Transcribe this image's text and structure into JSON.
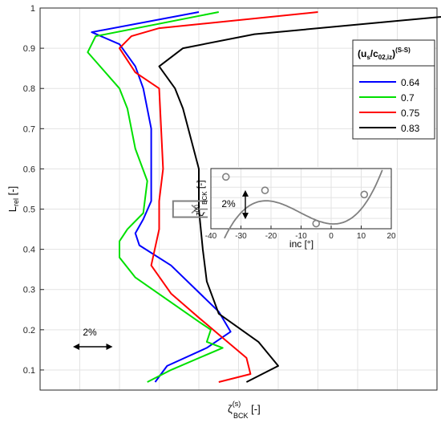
{
  "chart_data": [
    {
      "type": "line",
      "title": "",
      "xlabel_main": "ζ",
      "xlabel_sub": "BCK",
      "xlabel_sup": "(s)",
      "xlabel_unit": " [-]",
      "ylabel_main": "L",
      "ylabel_sub": "rel",
      "ylabel_unit": " [-]",
      "ylim": [
        0.05,
        1.0
      ],
      "yticks": [
        "0.1",
        "0.2",
        "0.3",
        "0.4",
        "0.5",
        "0.6",
        "0.7",
        "0.8",
        "0.9",
        "1"
      ],
      "yticks_values": [
        0.1,
        0.2,
        0.3,
        0.4,
        0.5,
        0.6,
        0.7,
        0.8,
        0.9,
        1.0
      ],
      "xlim": [
        0,
        100
      ],
      "xgrid": [
        0,
        10,
        20,
        30,
        40,
        50,
        60,
        70,
        80,
        90,
        100
      ],
      "grid": true,
      "legend_position": "top-right",
      "legend_title": {
        "base": "(u",
        "sub1": "s",
        "mid": "/c",
        "sub2": "02,iz",
        "close": ")",
        "sup": "(S-S)"
      },
      "scale_annotation": "2%",
      "scale_annotation_width": 10,
      "highlight_box": {
        "x": [
          33.5,
          49
        ],
        "y": [
          0.48,
          0.52
        ]
      },
      "series": [
        {
          "name": "0.64",
          "color": "#0000ff",
          "points": [
            [
              29,
              0.07
            ],
            [
              32,
              0.11
            ],
            [
              42,
              0.155
            ],
            [
              48,
              0.195
            ],
            [
              45,
              0.245
            ],
            [
              33,
              0.36
            ],
            [
              25,
              0.41
            ],
            [
              24,
              0.44
            ],
            [
              26,
              0.475
            ],
            [
              28,
              0.52
            ],
            [
              28,
              0.58
            ],
            [
              28,
              0.7
            ],
            [
              26,
              0.8
            ],
            [
              24,
              0.855
            ],
            [
              20,
              0.91
            ],
            [
              13,
              0.94
            ],
            [
              40,
              0.99
            ]
          ]
        },
        {
          "name": "0.7",
          "color": "#00e000",
          "points": [
            [
              27,
              0.07
            ],
            [
              33,
              0.1
            ],
            [
              46,
              0.155
            ],
            [
              42,
              0.17
            ],
            [
              43,
              0.2
            ],
            [
              40,
              0.22
            ],
            [
              24,
              0.33
            ],
            [
              20,
              0.38
            ],
            [
              20,
              0.42
            ],
            [
              22,
              0.45
            ],
            [
              26,
              0.49
            ],
            [
              27,
              0.57
            ],
            [
              24,
              0.65
            ],
            [
              22,
              0.75
            ],
            [
              20,
              0.8
            ],
            [
              12,
              0.89
            ],
            [
              14,
              0.93
            ],
            [
              45,
              0.99
            ]
          ]
        },
        {
          "name": "0.75",
          "color": "#ff0000",
          "points": [
            [
              45,
              0.07
            ],
            [
              53,
              0.09
            ],
            [
              52,
              0.13
            ],
            [
              46,
              0.18
            ],
            [
              40,
              0.23
            ],
            [
              33,
              0.29
            ],
            [
              28,
              0.36
            ],
            [
              30,
              0.45
            ],
            [
              30,
              0.52
            ],
            [
              31,
              0.6
            ],
            [
              30,
              0.8
            ],
            [
              24,
              0.84
            ],
            [
              20,
              0.9
            ],
            [
              23,
              0.93
            ],
            [
              30,
              0.95
            ],
            [
              70,
              0.99
            ]
          ]
        },
        {
          "name": "0.83",
          "color": "#000000",
          "points": [
            [
              52,
              0.07
            ],
            [
              60,
              0.11
            ],
            [
              55,
              0.17
            ],
            [
              45,
              0.24
            ],
            [
              42,
              0.32
            ],
            [
              41,
              0.4
            ],
            [
              40,
              0.5
            ],
            [
              40,
              0.6
            ],
            [
              36,
              0.75
            ],
            [
              34,
              0.8
            ],
            [
              30,
              0.855
            ],
            [
              36,
              0.9
            ],
            [
              54,
              0.935
            ],
            [
              114,
              0.99
            ]
          ]
        }
      ]
    },
    {
      "type": "line",
      "title": "",
      "xlabel": "inc [°]",
      "ylabel_main": "ζ",
      "ylabel_sub": "BCK",
      "ylabel_sup": "(s)",
      "ylabel_unit": " [-]",
      "xlim": [
        -40,
        20
      ],
      "xticks": [
        "-40",
        "-30",
        "-20",
        "-10",
        "0",
        "10",
        "20"
      ],
      "xticks_values": [
        -40,
        -30,
        -20,
        -10,
        0,
        10,
        20
      ],
      "grid": true,
      "scale_annotation": "2%",
      "scale_annotation_height": 0.028,
      "series": [
        {
          "name": "",
          "color": "#808080",
          "markers": [
            [
              -35,
              0.1
            ],
            [
              -22,
              0.087
            ],
            [
              -5,
              0.055
            ],
            [
              11,
              0.083
            ]
          ],
          "fit_coeffs": [
            0.0547,
            -0.0002,
            0.000124,
            3.96e-06
          ],
          "fit_range": [
            -35.5,
            17
          ]
        }
      ]
    }
  ]
}
